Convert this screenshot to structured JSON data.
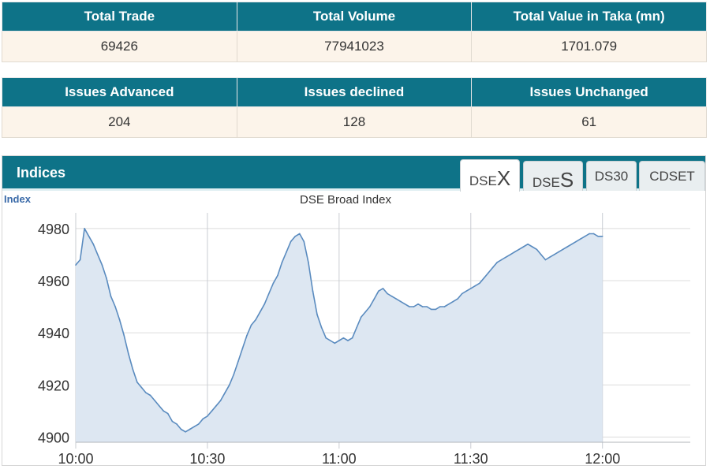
{
  "stats_row1": {
    "headers": [
      "Total Trade",
      "Total Volume",
      "Total Value in Taka (mn)"
    ],
    "values": [
      "69426",
      "77941023",
      "1701.079"
    ]
  },
  "stats_row2": {
    "headers": [
      "Issues Advanced",
      "Issues declined",
      "Issues Unchanged"
    ],
    "values": [
      "204",
      "128",
      "61"
    ]
  },
  "panel": {
    "title": "Indices",
    "tabs": [
      {
        "prefix": "DSE",
        "suffix": "X",
        "active": true
      },
      {
        "prefix": "DSE",
        "suffix": "S",
        "active": false
      },
      {
        "prefix": "DS30",
        "suffix": "",
        "active": false
      },
      {
        "prefix": "CDSET",
        "suffix": "",
        "active": false
      }
    ]
  },
  "colors": {
    "header_bg": "#0e7388",
    "cell_bg": "#fcf4ea",
    "line": "#5a8bbf",
    "fill": "#dde7f2"
  },
  "chart_data": {
    "type": "area",
    "title": "DSE Broad Index",
    "ylabel": "Index",
    "xlabel": "",
    "ylim": [
      4898,
      4986
    ],
    "xlim": [
      "10:00",
      "12:20"
    ],
    "y_ticks": [
      4900,
      4920,
      4940,
      4960,
      4980
    ],
    "x_ticks": [
      "10:00",
      "10:30",
      "11:00",
      "11:30",
      "12:00"
    ],
    "grid": true,
    "series": [
      {
        "points": [
          [
            "10:00",
            4966
          ],
          [
            "10:01",
            4968
          ],
          [
            "10:02",
            4980
          ],
          [
            "10:03",
            4977
          ],
          [
            "10:04",
            4974
          ],
          [
            "10:05",
            4970
          ],
          [
            "10:06",
            4966
          ],
          [
            "10:07",
            4961
          ],
          [
            "10:08",
            4954
          ],
          [
            "10:09",
            4950
          ],
          [
            "10:10",
            4945
          ],
          [
            "10:11",
            4939
          ],
          [
            "10:12",
            4932
          ],
          [
            "10:13",
            4926
          ],
          [
            "10:14",
            4921
          ],
          [
            "10:15",
            4919
          ],
          [
            "10:16",
            4917
          ],
          [
            "10:17",
            4916
          ],
          [
            "10:18",
            4914
          ],
          [
            "10:19",
            4912
          ],
          [
            "10:20",
            4910
          ],
          [
            "10:21",
            4909
          ],
          [
            "10:22",
            4906
          ],
          [
            "10:23",
            4905
          ],
          [
            "10:24",
            4903
          ],
          [
            "10:25",
            4902
          ],
          [
            "10:26",
            4903
          ],
          [
            "10:27",
            4904
          ],
          [
            "10:28",
            4905
          ],
          [
            "10:29",
            4907
          ],
          [
            "10:30",
            4908
          ],
          [
            "10:31",
            4910
          ],
          [
            "10:32",
            4912
          ],
          [
            "10:33",
            4914
          ],
          [
            "10:34",
            4917
          ],
          [
            "10:35",
            4920
          ],
          [
            "10:36",
            4924
          ],
          [
            "10:37",
            4929
          ],
          [
            "10:38",
            4934
          ],
          [
            "10:39",
            4939
          ],
          [
            "10:40",
            4943
          ],
          [
            "10:41",
            4945
          ],
          [
            "10:42",
            4948
          ],
          [
            "10:43",
            4951
          ],
          [
            "10:44",
            4955
          ],
          [
            "10:45",
            4959
          ],
          [
            "10:46",
            4962
          ],
          [
            "10:47",
            4967
          ],
          [
            "10:48",
            4971
          ],
          [
            "10:49",
            4975
          ],
          [
            "10:50",
            4977
          ],
          [
            "10:51",
            4978
          ],
          [
            "10:52",
            4975
          ],
          [
            "10:53",
            4967
          ],
          [
            "10:54",
            4956
          ],
          [
            "10:55",
            4947
          ],
          [
            "10:56",
            4942
          ],
          [
            "10:57",
            4938
          ],
          [
            "10:58",
            4937
          ],
          [
            "10:59",
            4936
          ],
          [
            "11:00",
            4937
          ],
          [
            "11:01",
            4938
          ],
          [
            "11:02",
            4937
          ],
          [
            "11:03",
            4938
          ],
          [
            "11:04",
            4942
          ],
          [
            "11:05",
            4946
          ],
          [
            "11:06",
            4948
          ],
          [
            "11:07",
            4950
          ],
          [
            "11:08",
            4953
          ],
          [
            "11:09",
            4956
          ],
          [
            "11:10",
            4957
          ],
          [
            "11:11",
            4955
          ],
          [
            "11:12",
            4954
          ],
          [
            "11:13",
            4953
          ],
          [
            "11:14",
            4952
          ],
          [
            "11:15",
            4951
          ],
          [
            "11:16",
            4950
          ],
          [
            "11:17",
            4950
          ],
          [
            "11:18",
            4951
          ],
          [
            "11:19",
            4950
          ],
          [
            "11:20",
            4950
          ],
          [
            "11:21",
            4949
          ],
          [
            "11:22",
            4949
          ],
          [
            "11:23",
            4950
          ],
          [
            "11:24",
            4950
          ],
          [
            "11:25",
            4951
          ],
          [
            "11:26",
            4952
          ],
          [
            "11:27",
            4953
          ],
          [
            "11:28",
            4955
          ],
          [
            "11:29",
            4956
          ],
          [
            "11:30",
            4957
          ],
          [
            "11:31",
            4958
          ],
          [
            "11:32",
            4959
          ],
          [
            "11:33",
            4961
          ],
          [
            "11:34",
            4963
          ],
          [
            "11:35",
            4965
          ],
          [
            "11:36",
            4967
          ],
          [
            "11:37",
            4968
          ],
          [
            "11:38",
            4969
          ],
          [
            "11:39",
            4970
          ],
          [
            "11:40",
            4971
          ],
          [
            "11:41",
            4972
          ],
          [
            "11:42",
            4973
          ],
          [
            "11:43",
            4974
          ],
          [
            "11:44",
            4973
          ],
          [
            "11:45",
            4972
          ],
          [
            "11:46",
            4970
          ],
          [
            "11:47",
            4968
          ],
          [
            "11:48",
            4969
          ],
          [
            "11:49",
            4970
          ],
          [
            "11:50",
            4971
          ],
          [
            "11:51",
            4972
          ],
          [
            "11:52",
            4973
          ],
          [
            "11:53",
            4974
          ],
          [
            "11:54",
            4975
          ],
          [
            "11:55",
            4976
          ],
          [
            "11:56",
            4977
          ],
          [
            "11:57",
            4978
          ],
          [
            "11:58",
            4978
          ],
          [
            "11:59",
            4977
          ],
          [
            "12:00",
            4977
          ]
        ]
      }
    ]
  }
}
